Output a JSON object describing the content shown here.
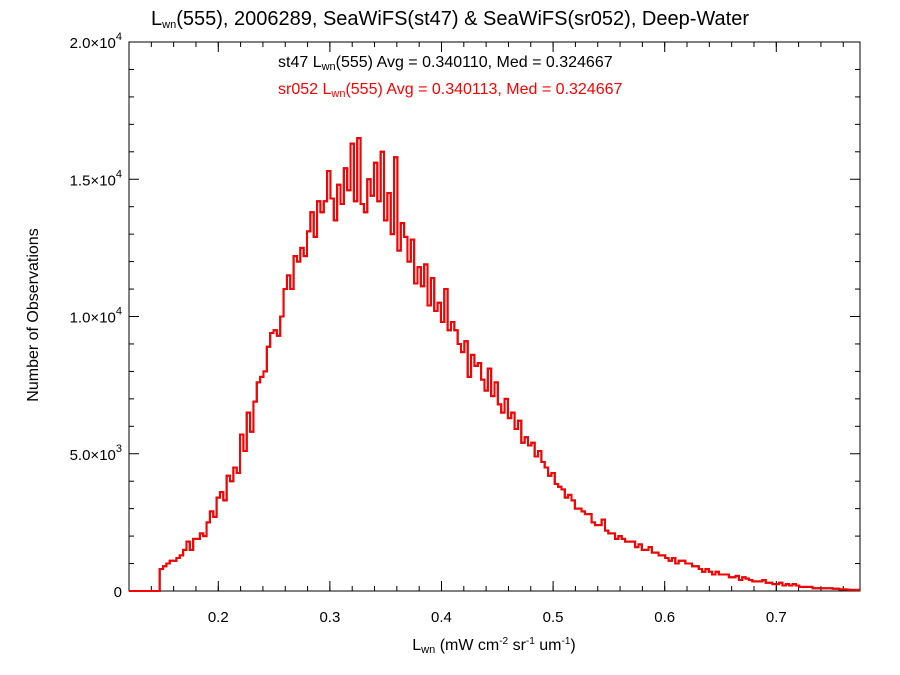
{
  "chart_data": {
    "type": "histogram",
    "title": {
      "pre": "L",
      "sub": "wn",
      "post": "(555), 2006289, SeaWiFS(st47) & SeaWiFS(sr052), Deep-Water"
    },
    "xlabel": {
      "pre": "L",
      "sub": "wn",
      "post1": " (mW cm",
      "sup1": "-2",
      "post2": " sr",
      "sup2": "-1",
      "post3": " um",
      "sup3": "-1",
      "post4": ")"
    },
    "ylabel": "Number of Observations",
    "xlim": [
      0.12,
      0.775
    ],
    "ylim": [
      0,
      20000
    ],
    "xticks": [
      "0.2",
      "0.3",
      "0.4",
      "0.5",
      "0.6",
      "0.7"
    ],
    "yticks": [
      {
        "value": 0,
        "mant": "0",
        "exp": ""
      },
      {
        "value": 5000,
        "mant": "5.0×10",
        "exp": "3"
      },
      {
        "value": 10000,
        "mant": "1.0×10",
        "exp": "4"
      },
      {
        "value": 15000,
        "mant": "1.5×10",
        "exp": "4"
      },
      {
        "value": 20000,
        "mant": "2.0×10",
        "exp": "4"
      }
    ],
    "stats": [
      {
        "pre": "st47 L",
        "sub": "wn",
        "post": "(555) Avg = 0.340110, Med = 0.324667",
        "color": "#000000"
      },
      {
        "pre": "sr052 L",
        "sub": "wn",
        "post": "(555) Avg = 0.340113, Med = 0.324667",
        "color": "#ff0000"
      }
    ],
    "series": [
      {
        "name": "st47",
        "color": "#000000"
      },
      {
        "name": "sr052",
        "color": "#ff0000"
      }
    ],
    "bin_start": 0.1475,
    "bin_width": 0.003,
    "values": [
      800,
      900,
      1000,
      1100,
      1100,
      1200,
      1300,
      1500,
      1800,
      1500,
      1900,
      1900,
      2100,
      2000,
      2500,
      2900,
      2700,
      3400,
      3600,
      3300,
      4200,
      4000,
      4500,
      4300,
      5700,
      5100,
      6500,
      5800,
      6900,
      7600,
      7800,
      8000,
      8900,
      9400,
      9500,
      9300,
      10000,
      11000,
      11500,
      11000,
      12200,
      12000,
      12500,
      12200,
      13100,
      13800,
      12900,
      14200,
      13800,
      14200,
      15300,
      14300,
      13500,
      14800,
      14100,
      15400,
      14600,
      16300,
      14200,
      16500,
      14100,
      13800,
      15000,
      14400,
      15600,
      14200,
      16000,
      13500,
      14500,
      13000,
      15800,
      12400,
      13400,
      12900,
      12000,
      12800,
      11200,
      11800,
      11100,
      11900,
      10400,
      11400,
      10200,
      10500,
      9800,
      11000,
      9500,
      9800,
      9500,
      9000,
      8700,
      9100,
      7800,
      8600,
      8200,
      8300,
      7700,
      7300,
      8100,
      7100,
      7600,
      6800,
      6500,
      7000,
      6300,
      6500,
      5900,
      6200,
      5400,
      5600,
      5300,
      5400,
      4900,
      5100,
      4700,
      4500,
      4200,
      4300,
      3900,
      3800,
      3700,
      3400,
      3500,
      3300,
      3000,
      3000,
      2900,
      2800,
      2800,
      2500,
      2400,
      2400,
      2600,
      2200,
      2100,
      2100,
      1900,
      2000,
      1900,
      1800,
      1800,
      1800,
      1600,
      1700,
      1500,
      1500,
      1600,
      1400,
      1400,
      1300,
      1300,
      1200,
      1100,
      1200,
      1000,
      1100,
      1100,
      1000,
      1000,
      900,
      900,
      800,
      700,
      800,
      700,
      600,
      700,
      600,
      600,
      600,
      500,
      500,
      550,
      400,
      500,
      450,
      400,
      350,
      350,
      350,
      400,
      300,
      300,
      250,
      250,
      300,
      200,
      250,
      200,
      250,
      200,
      150,
      150,
      150,
      150,
      100,
      100,
      100,
      100,
      100,
      100,
      80,
      80,
      60,
      60,
      50,
      40,
      40
    ]
  }
}
